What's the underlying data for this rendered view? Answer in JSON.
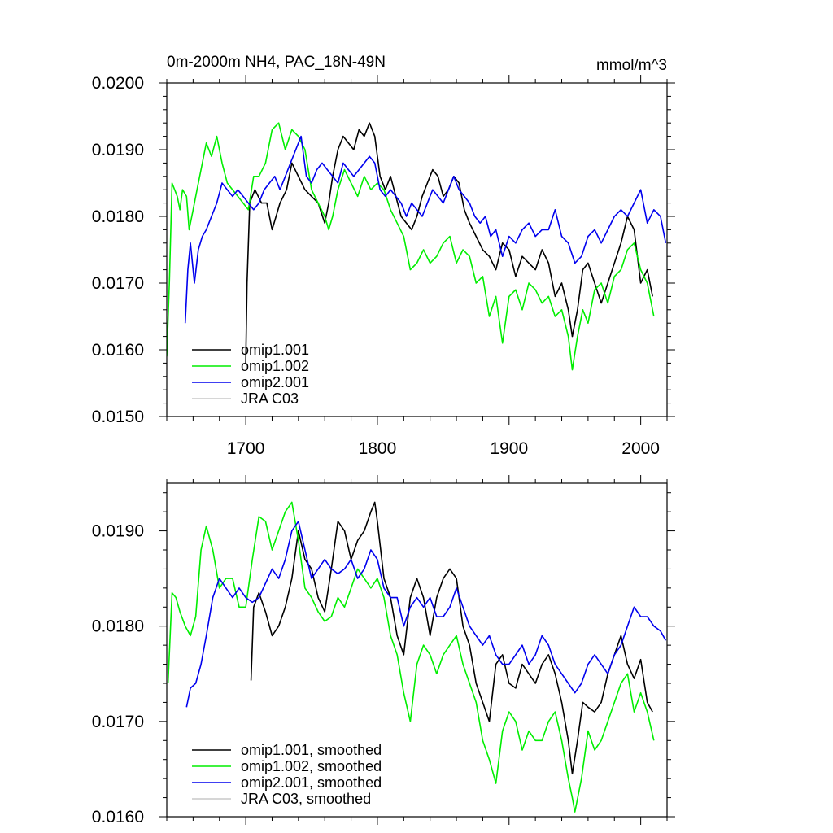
{
  "chart_data": [
    {
      "type": "line",
      "title": "0m-2000m NH4, PAC_18N-49N",
      "units": "mmol/m^3",
      "xlim": [
        1640,
        2020
      ],
      "ylim": [
        0.015,
        0.02
      ],
      "xticks": [
        1700,
        1800,
        1900,
        2000
      ],
      "xtick_labels": [
        "1700",
        "1800",
        "1900",
        "2000"
      ],
      "yticks": [
        0.015,
        0.016,
        0.017,
        0.018,
        0.019,
        0.02
      ],
      "ytick_labels": [
        "0.0150",
        "0.0160",
        "0.0170",
        "0.0180",
        "0.0190",
        "0.0200"
      ],
      "legend_position": "bottom-left",
      "series": [
        {
          "name": "omip1.001",
          "color": "#000000",
          "x": [
            1700,
            1701,
            1703,
            1707,
            1712,
            1716,
            1720,
            1726,
            1731,
            1735,
            1740,
            1745,
            1750,
            1755,
            1760,
            1763,
            1766,
            1770,
            1774,
            1778,
            1782,
            1786,
            1790,
            1794,
            1798,
            1802,
            1806,
            1810,
            1814,
            1818,
            1822,
            1826,
            1830,
            1834,
            1838,
            1842,
            1846,
            1850,
            1854,
            1858,
            1862,
            1866,
            1870,
            1875,
            1880,
            1885,
            1890,
            1895,
            1900,
            1905,
            1910,
            1915,
            1920,
            1925,
            1930,
            1935,
            1940,
            1945,
            1948,
            1952,
            1956,
            1960,
            1965,
            1970,
            1975,
            1980,
            1985,
            1990,
            1995,
            2000,
            2005,
            2009
          ],
          "y": [
            0.0158,
            0.017,
            0.0182,
            0.0184,
            0.0182,
            0.0182,
            0.0178,
            0.0182,
            0.0184,
            0.0188,
            0.0186,
            0.0184,
            0.0183,
            0.0182,
            0.0179,
            0.0182,
            0.0186,
            0.019,
            0.0192,
            0.0191,
            0.019,
            0.0193,
            0.0192,
            0.0194,
            0.0192,
            0.0186,
            0.0184,
            0.0186,
            0.0183,
            0.018,
            0.0179,
            0.0178,
            0.018,
            0.0183,
            0.0185,
            0.0187,
            0.0186,
            0.0183,
            0.0184,
            0.0186,
            0.0185,
            0.0181,
            0.0179,
            0.0177,
            0.0175,
            0.0174,
            0.0172,
            0.0176,
            0.0175,
            0.0171,
            0.0174,
            0.0173,
            0.0172,
            0.0175,
            0.0173,
            0.0168,
            0.017,
            0.0166,
            0.0162,
            0.0166,
            0.0172,
            0.0173,
            0.017,
            0.0167,
            0.017,
            0.0173,
            0.0176,
            0.018,
            0.0178,
            0.017,
            0.0172,
            0.0168
          ]
        },
        {
          "name": "omip1.002",
          "color": "#00ee00",
          "x": [
            1640,
            1642,
            1644,
            1646,
            1648,
            1650,
            1652,
            1655,
            1657,
            1660,
            1663,
            1666,
            1670,
            1674,
            1678,
            1682,
            1686,
            1690,
            1694,
            1698,
            1702,
            1706,
            1710,
            1715,
            1720,
            1725,
            1730,
            1735,
            1740,
            1745,
            1750,
            1755,
            1760,
            1763,
            1766,
            1770,
            1775,
            1780,
            1785,
            1790,
            1795,
            1800,
            1805,
            1810,
            1815,
            1820,
            1825,
            1830,
            1835,
            1840,
            1845,
            1850,
            1855,
            1860,
            1865,
            1870,
            1875,
            1880,
            1885,
            1890,
            1895,
            1900,
            1905,
            1910,
            1915,
            1920,
            1925,
            1930,
            1935,
            1940,
            1945,
            1948,
            1952,
            1956,
            1960,
            1965,
            1970,
            1975,
            1980,
            1985,
            1990,
            1995,
            2000,
            2005,
            2010
          ],
          "y": [
            0.0159,
            0.017,
            0.0185,
            0.0184,
            0.0183,
            0.0181,
            0.0184,
            0.0183,
            0.0178,
            0.0181,
            0.0184,
            0.0187,
            0.0191,
            0.0189,
            0.0192,
            0.0188,
            0.0185,
            0.0184,
            0.0183,
            0.0182,
            0.0181,
            0.0186,
            0.0186,
            0.0188,
            0.0193,
            0.0194,
            0.019,
            0.0193,
            0.0192,
            0.019,
            0.0184,
            0.0182,
            0.018,
            0.0178,
            0.018,
            0.0184,
            0.0187,
            0.0185,
            0.0183,
            0.0186,
            0.0184,
            0.0185,
            0.0184,
            0.0181,
            0.0179,
            0.0177,
            0.0172,
            0.0173,
            0.0175,
            0.0173,
            0.0174,
            0.0176,
            0.0177,
            0.0173,
            0.0175,
            0.0174,
            0.017,
            0.0171,
            0.0165,
            0.0168,
            0.0161,
            0.0168,
            0.0169,
            0.0166,
            0.017,
            0.0169,
            0.0167,
            0.0168,
            0.0165,
            0.0166,
            0.0162,
            0.0157,
            0.0162,
            0.0166,
            0.0164,
            0.0169,
            0.017,
            0.0167,
            0.0171,
            0.0172,
            0.0175,
            0.0176,
            0.0172,
            0.017,
            0.0165
          ]
        },
        {
          "name": "omip2.001",
          "color": "#0000ee",
          "x": [
            1654,
            1656,
            1658,
            1661,
            1664,
            1667,
            1670,
            1674,
            1678,
            1682,
            1686,
            1690,
            1694,
            1698,
            1702,
            1706,
            1710,
            1714,
            1718,
            1722,
            1726,
            1730,
            1734,
            1738,
            1742,
            1746,
            1750,
            1754,
            1758,
            1762,
            1766,
            1770,
            1774,
            1778,
            1782,
            1786,
            1790,
            1794,
            1798,
            1802,
            1806,
            1810,
            1814,
            1818,
            1822,
            1826,
            1830,
            1834,
            1838,
            1842,
            1846,
            1850,
            1854,
            1858,
            1862,
            1866,
            1870,
            1874,
            1878,
            1882,
            1886,
            1890,
            1895,
            1900,
            1905,
            1910,
            1915,
            1920,
            1925,
            1930,
            1935,
            1940,
            1945,
            1950,
            1955,
            1960,
            1965,
            1970,
            1975,
            1980,
            1985,
            1990,
            1995,
            2000,
            2005,
            2010,
            2015,
            2019
          ],
          "y": [
            0.0164,
            0.0172,
            0.0176,
            0.017,
            0.0175,
            0.0177,
            0.0178,
            0.018,
            0.0182,
            0.0185,
            0.0184,
            0.0183,
            0.0184,
            0.0183,
            0.0182,
            0.0181,
            0.0182,
            0.0184,
            0.0185,
            0.0186,
            0.0184,
            0.0186,
            0.0188,
            0.019,
            0.0192,
            0.0186,
            0.0185,
            0.0187,
            0.0188,
            0.0187,
            0.0186,
            0.0185,
            0.0188,
            0.0187,
            0.0186,
            0.0187,
            0.0188,
            0.0189,
            0.0188,
            0.0184,
            0.0183,
            0.0184,
            0.0183,
            0.0182,
            0.018,
            0.0182,
            0.0181,
            0.018,
            0.0182,
            0.0184,
            0.0183,
            0.0182,
            0.0184,
            0.0186,
            0.0184,
            0.0183,
            0.0182,
            0.018,
            0.0179,
            0.018,
            0.0177,
            0.0178,
            0.0174,
            0.0177,
            0.0176,
            0.0178,
            0.0179,
            0.0177,
            0.0178,
            0.0178,
            0.0181,
            0.0177,
            0.0176,
            0.0173,
            0.0174,
            0.0177,
            0.0178,
            0.0176,
            0.0178,
            0.018,
            0.0181,
            0.018,
            0.0182,
            0.0184,
            0.0179,
            0.0181,
            0.018,
            0.0176
          ]
        },
        {
          "name": "JRA C03",
          "color": "#c8c8c8",
          "x": [],
          "y": []
        }
      ]
    },
    {
      "type": "line",
      "title": "",
      "xlim": [
        1640,
        2020
      ],
      "ylim": [
        0.016,
        0.0195
      ],
      "xticks": [
        1700,
        1800,
        1900,
        2000
      ],
      "yticks": [
        0.016,
        0.017,
        0.018,
        0.019
      ],
      "ytick_labels": [
        "0.0160",
        "0.0170",
        "0.0180",
        "0.0190"
      ],
      "legend_position": "bottom-left",
      "series": [
        {
          "name": "omip1.001, smoothed",
          "color": "#000000",
          "x": [
            1704,
            1706,
            1710,
            1715,
            1720,
            1725,
            1730,
            1735,
            1740,
            1745,
            1750,
            1755,
            1760,
            1765,
            1770,
            1775,
            1780,
            1785,
            1790,
            1795,
            1798,
            1800,
            1805,
            1810,
            1815,
            1820,
            1825,
            1830,
            1835,
            1840,
            1845,
            1850,
            1855,
            1860,
            1865,
            1870,
            1875,
            1880,
            1885,
            1890,
            1895,
            1900,
            1905,
            1910,
            1915,
            1920,
            1925,
            1930,
            1935,
            1940,
            1945,
            1948,
            1952,
            1956,
            1960,
            1965,
            1970,
            1975,
            1980,
            1985,
            1990,
            1995,
            2000,
            2005,
            2009
          ],
          "y": [
            0.01743,
            0.0182,
            0.01835,
            0.01815,
            0.0179,
            0.018,
            0.0182,
            0.0185,
            0.019,
            0.0187,
            0.0186,
            0.0183,
            0.01815,
            0.0186,
            0.0191,
            0.019,
            0.0187,
            0.0189,
            0.019,
            0.0192,
            0.0193,
            0.0191,
            0.0185,
            0.0183,
            0.0179,
            0.0177,
            0.0183,
            0.0185,
            0.0183,
            0.0179,
            0.0183,
            0.0185,
            0.0186,
            0.0185,
            0.018,
            0.0178,
            0.0174,
            0.0172,
            0.017,
            0.0176,
            0.0177,
            0.0174,
            0.01735,
            0.0176,
            0.0175,
            0.0174,
            0.0176,
            0.0177,
            0.0175,
            0.0172,
            0.0168,
            0.01645,
            0.0168,
            0.0172,
            0.01715,
            0.0171,
            0.0172,
            0.0175,
            0.0177,
            0.0179,
            0.0176,
            0.01745,
            0.01765,
            0.0172,
            0.0171
          ]
        },
        {
          "name": "omip1.002, smoothed",
          "color": "#00ee00",
          "x": [
            1641,
            1644,
            1647,
            1650,
            1654,
            1658,
            1662,
            1666,
            1670,
            1675,
            1680,
            1685,
            1690,
            1695,
            1700,
            1705,
            1710,
            1715,
            1720,
            1725,
            1730,
            1735,
            1740,
            1745,
            1750,
            1755,
            1760,
            1765,
            1770,
            1775,
            1780,
            1785,
            1790,
            1795,
            1800,
            1805,
            1810,
            1815,
            1820,
            1825,
            1830,
            1835,
            1840,
            1845,
            1850,
            1855,
            1860,
            1865,
            1870,
            1875,
            1880,
            1885,
            1890,
            1895,
            1900,
            1905,
            1910,
            1915,
            1920,
            1925,
            1930,
            1935,
            1940,
            1945,
            1948,
            1950,
            1955,
            1960,
            1965,
            1970,
            1975,
            1980,
            1985,
            1990,
            1995,
            2000,
            2005,
            2010
          ],
          "y": [
            0.0174,
            0.01835,
            0.0183,
            0.01815,
            0.018,
            0.0179,
            0.0181,
            0.0188,
            0.01905,
            0.0188,
            0.0184,
            0.0185,
            0.0185,
            0.0182,
            0.0182,
            0.0187,
            0.01915,
            0.0191,
            0.0188,
            0.019,
            0.0192,
            0.0193,
            0.0189,
            0.0184,
            0.0183,
            0.01815,
            0.01805,
            0.0181,
            0.0183,
            0.0182,
            0.0184,
            0.0186,
            0.0185,
            0.0184,
            0.0185,
            0.0183,
            0.0179,
            0.0177,
            0.0173,
            0.017,
            0.0176,
            0.0178,
            0.0177,
            0.0175,
            0.0177,
            0.0178,
            0.0179,
            0.0176,
            0.0174,
            0.0172,
            0.0168,
            0.0166,
            0.01635,
            0.0169,
            0.0171,
            0.017,
            0.0167,
            0.0169,
            0.0168,
            0.0168,
            0.017,
            0.0171,
            0.0168,
            0.0164,
            0.0162,
            0.01605,
            0.0164,
            0.0169,
            0.0167,
            0.0168,
            0.017,
            0.0172,
            0.0174,
            0.0175,
            0.0171,
            0.0173,
            0.0171,
            0.0168
          ]
        },
        {
          "name": "omip2.001, smoothed",
          "color": "#0000ee",
          "x": [
            1655,
            1658,
            1662,
            1666,
            1670,
            1675,
            1680,
            1685,
            1690,
            1695,
            1700,
            1705,
            1710,
            1715,
            1720,
            1725,
            1730,
            1735,
            1740,
            1745,
            1750,
            1755,
            1760,
            1765,
            1770,
            1775,
            1780,
            1785,
            1790,
            1795,
            1800,
            1805,
            1810,
            1815,
            1820,
            1825,
            1830,
            1835,
            1840,
            1845,
            1850,
            1855,
            1860,
            1865,
            1870,
            1875,
            1880,
            1885,
            1890,
            1895,
            1900,
            1905,
            1910,
            1915,
            1920,
            1925,
            1930,
            1935,
            1940,
            1945,
            1950,
            1955,
            1960,
            1965,
            1970,
            1975,
            1980,
            1985,
            1990,
            1995,
            2000,
            2005,
            2010,
            2015,
            2019
          ],
          "y": [
            0.01715,
            0.01735,
            0.0174,
            0.0176,
            0.0179,
            0.0183,
            0.0185,
            0.0184,
            0.0183,
            0.0184,
            0.0183,
            0.01825,
            0.0183,
            0.01845,
            0.0186,
            0.0185,
            0.0187,
            0.019,
            0.0191,
            0.0188,
            0.0185,
            0.0186,
            0.0187,
            0.0186,
            0.01855,
            0.0186,
            0.0187,
            0.0185,
            0.0186,
            0.0188,
            0.0187,
            0.0184,
            0.0183,
            0.0183,
            0.018,
            0.0182,
            0.0183,
            0.0182,
            0.0183,
            0.0181,
            0.0181,
            0.0182,
            0.0184,
            0.0182,
            0.018,
            0.0179,
            0.0178,
            0.0179,
            0.0177,
            0.0176,
            0.0176,
            0.0177,
            0.0178,
            0.0176,
            0.0177,
            0.0179,
            0.0178,
            0.0176,
            0.0175,
            0.0174,
            0.0173,
            0.0174,
            0.0176,
            0.0177,
            0.0176,
            0.0175,
            0.0177,
            0.0178,
            0.018,
            0.0182,
            0.0181,
            0.0181,
            0.018,
            0.01795,
            0.01785
          ]
        },
        {
          "name": "JRA C03, smoothed",
          "color": "#c8c8c8",
          "x": [],
          "y": []
        }
      ]
    }
  ]
}
